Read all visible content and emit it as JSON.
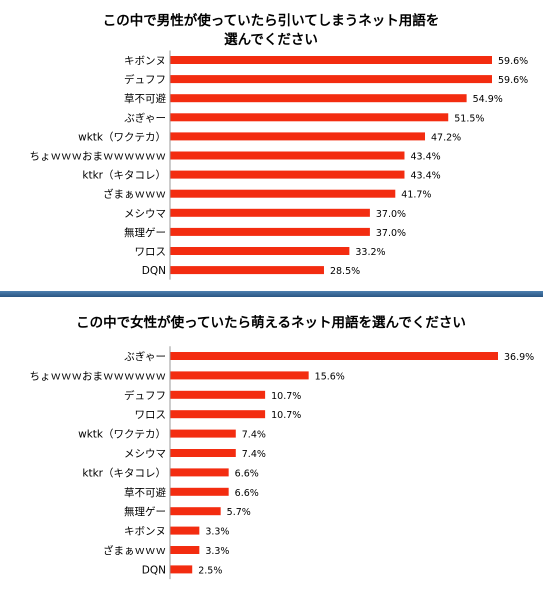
{
  "colors": {
    "bar": "#f32c10",
    "text": "#000000",
    "divider": "#2f5d8c"
  },
  "chart_data": [
    {
      "type": "bar",
      "orientation": "horizontal",
      "title": "この中で男性が使っていたら引いてしまうネット用語を\n選んでください",
      "title_lines": [
        "この中で男性が使っていたら引いてしまうネット用語を",
        "選んでください"
      ],
      "categories": [
        "キボンヌ",
        "デュフフ",
        "草不可避",
        "ぶぎゃー",
        "wktk（ワクテカ）",
        "ちょｗｗｗおまｗｗｗｗｗｗ",
        "ktkr（キタコレ）",
        "ざまぁｗｗｗ",
        "メシウマ",
        "無理ゲー",
        "ワロス",
        "DQN"
      ],
      "values": [
        59.6,
        59.6,
        54.9,
        51.5,
        47.2,
        43.4,
        43.4,
        41.7,
        37.0,
        37.0,
        33.2,
        28.5
      ],
      "value_labels": [
        "59.6%",
        "59.6%",
        "54.9%",
        "51.5%",
        "47.2%",
        "43.4%",
        "43.4%",
        "41.7%",
        "37.0%",
        "37.0%",
        "33.2%",
        "28.5%"
      ],
      "unit": "%",
      "xlim": [
        0,
        59.6
      ],
      "grid": false,
      "legend": "none"
    },
    {
      "type": "bar",
      "orientation": "horizontal",
      "title": "この中で女性が使っていたら萌えるネット用語を選んでください",
      "title_lines": [
        "この中で女性が使っていたら萌えるネット用語を選んでください"
      ],
      "categories": [
        "ぶぎゃー",
        "ちょｗｗｗおまｗｗｗｗｗｗ",
        "デュフフ",
        "ワロス",
        "wktk（ワクテカ）",
        "メシウマ",
        "ktkr（キタコレ）",
        "草不可避",
        "無理ゲー",
        "キボンヌ",
        "ざまぁｗｗｗ",
        "DQN"
      ],
      "values": [
        36.9,
        15.6,
        10.7,
        10.7,
        7.4,
        7.4,
        6.6,
        6.6,
        5.7,
        3.3,
        3.3,
        2.5
      ],
      "value_labels": [
        "36.9%",
        "15.6%",
        "10.7%",
        "10.7%",
        "7.4%",
        "7.4%",
        "6.6%",
        "6.6%",
        "5.7%",
        "3.3%",
        "3.3%",
        "2.5%"
      ],
      "unit": "%",
      "xlim": [
        0,
        36.9
      ],
      "grid": false,
      "legend": "none"
    }
  ]
}
